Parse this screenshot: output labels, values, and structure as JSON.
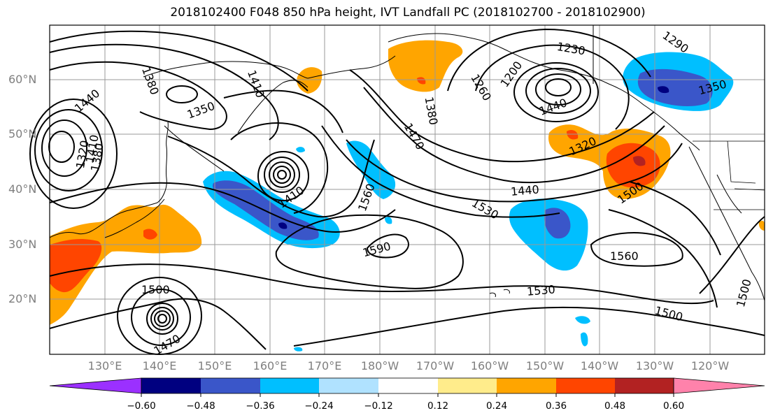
{
  "title": "2018102400 F048 850 hPa height, IVT Landfall PC (2018102700 - 2018102900)",
  "lat_labels": [
    "60°N",
    "50°N",
    "40°N",
    "30°N",
    "20°N"
  ],
  "lon_labels": [
    "130°E",
    "140°E",
    "150°E",
    "160°E",
    "170°E",
    "180°W",
    "170°W",
    "160°W",
    "150°W",
    "140°W",
    "130°W",
    "120°W"
  ],
  "contour_labels": [
    "1440",
    "1380",
    "1410",
    "1350",
    "1380",
    "1260",
    "1470",
    "1230",
    "1290",
    "1200",
    "1440",
    "1350",
    "1320",
    "1410",
    "1380",
    "1320",
    "1440",
    "1530",
    "1500",
    "1560",
    "1590",
    "1410",
    "1560",
    "1530",
    "1500",
    "1500",
    "1500",
    "1470"
  ],
  "colorbar": {
    "ticks": [
      "−0.60",
      "−0.48",
      "−0.36",
      "−0.24",
      "−0.12",
      "0.12",
      "0.24",
      "0.36",
      "0.48",
      "0.60"
    ],
    "colors": [
      "#9b30ff",
      "#000080",
      "#3a56c9",
      "#00bfff",
      "#b0e2ff",
      "#ffffff",
      "#ffec8b",
      "#ffa500",
      "#ff4500",
      "#b22222",
      "#ff82ab"
    ]
  },
  "colors": {
    "ocean": "#ffffff",
    "contour": "#000000",
    "grid": "#999999"
  }
}
